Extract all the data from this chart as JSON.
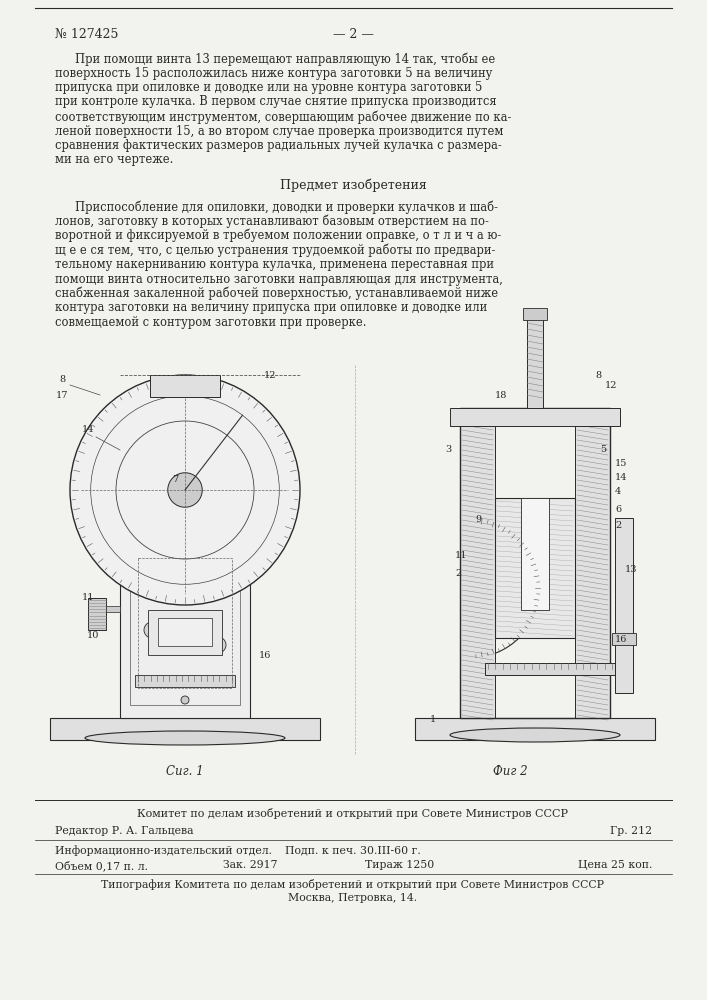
{
  "bg_color": "#f2f2ee",
  "text_color": "#1a1a1a",
  "patent_number": "№ 127425",
  "page_number": "— 2 —",
  "paragraph1_lines": [
    "При помощи винта 13 перемещают направляющую 14 так, чтобы ее",
    "поверхность 15 расположилась ниже контура заготовки 5 на величину",
    "припуска при опиловке и доводке или на уровне контура заготовки 5",
    "при контроле кулачка. В первом случае снятие припуска производится",
    "соответствующим инструментом, совершающим рабочее движение по ка-",
    "леной поверхности 15, а во втором случае проверка производится путем",
    "сравнения фактических размеров радиальных лучей кулачка с размера-",
    "ми на его чертеже."
  ],
  "subject_title": "Предмет изобретения",
  "paragraph2_lines": [
    "Приспособление для опиловки, доводки и проверки кулачков и шаб-",
    "лонов, заготовку в которых устанавливают базовым отверстием на по-",
    "воротной и фиксируемой в требуемом положении оправке, о т л и ч а ю-",
    "щ е е ся тем, что, с целью устранения трудоемкой работы по предвари-",
    "тельному накерниванию контура кулачка, применена переставная при",
    "помощи винта относительно заготовки направляющая для инструмента,",
    "снабженная закаленной рабочей поверхностью, устанавливаемой ниже",
    "контура заготовки на величину припуска при опиловке и доводке или",
    "совмещаемой с контуром заготовки при проверке."
  ],
  "fig1_label": "Сиг. 1",
  "fig2_label": "Фиг 2",
  "committee_line": "Комитет по делам изобретений и открытий при Совете Министров СССР",
  "editor_line": "Редактор Р. А. Гальцева",
  "gr_line": "Гр. 212",
  "info_line": "Информационно-издательский отдел.",
  "podp_line": "Подп. к печ. 30.III-60 г.",
  "volume_line": "Объем 0,17 п. л.",
  "zak_line": "Зак. 2917",
  "tirazh_line": "Тираж 1250",
  "price_line": "Цена 25 коп.",
  "typography_line1": "Типография Комитета по делам изобретений и открытий при Совете Министров СССР",
  "typography_line2": "Москва, Петровка, 14."
}
